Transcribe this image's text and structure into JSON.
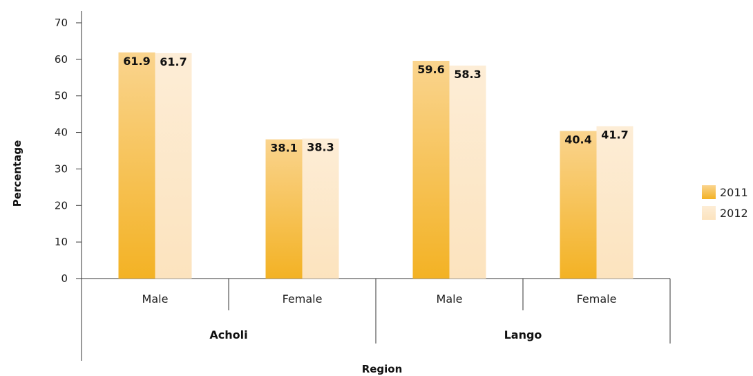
{
  "chart_data": {
    "type": "bar",
    "title": "",
    "xlabel": "Region",
    "ylabel": "Percentage",
    "ylim": [
      0,
      70
    ],
    "yticks": [
      0,
      10,
      20,
      30,
      40,
      50,
      60,
      70
    ],
    "groups": [
      {
        "label": "Acholi",
        "categories": [
          "Male",
          "Female"
        ]
      },
      {
        "label": "Lango",
        "categories": [
          "Male",
          "Female"
        ]
      }
    ],
    "categories": [
      "Male",
      "Female",
      "Male",
      "Female"
    ],
    "series": [
      {
        "name": "2011",
        "values": [
          61.9,
          38.1,
          59.6,
          40.4
        ],
        "color": "#F3B224",
        "color_light": "#FAD48E"
      },
      {
        "name": "2012",
        "values": [
          61.7,
          38.3,
          58.3,
          41.7
        ],
        "color": "#FCE3BE",
        "color_light": "#FDEDD6"
      }
    ],
    "data_labels": [
      [
        "61.9",
        "38.1",
        "59.6",
        "40.4"
      ],
      [
        "61.7",
        "38.3",
        "58.3",
        "41.7"
      ]
    ],
    "legend_position": "right",
    "grid": false
  }
}
